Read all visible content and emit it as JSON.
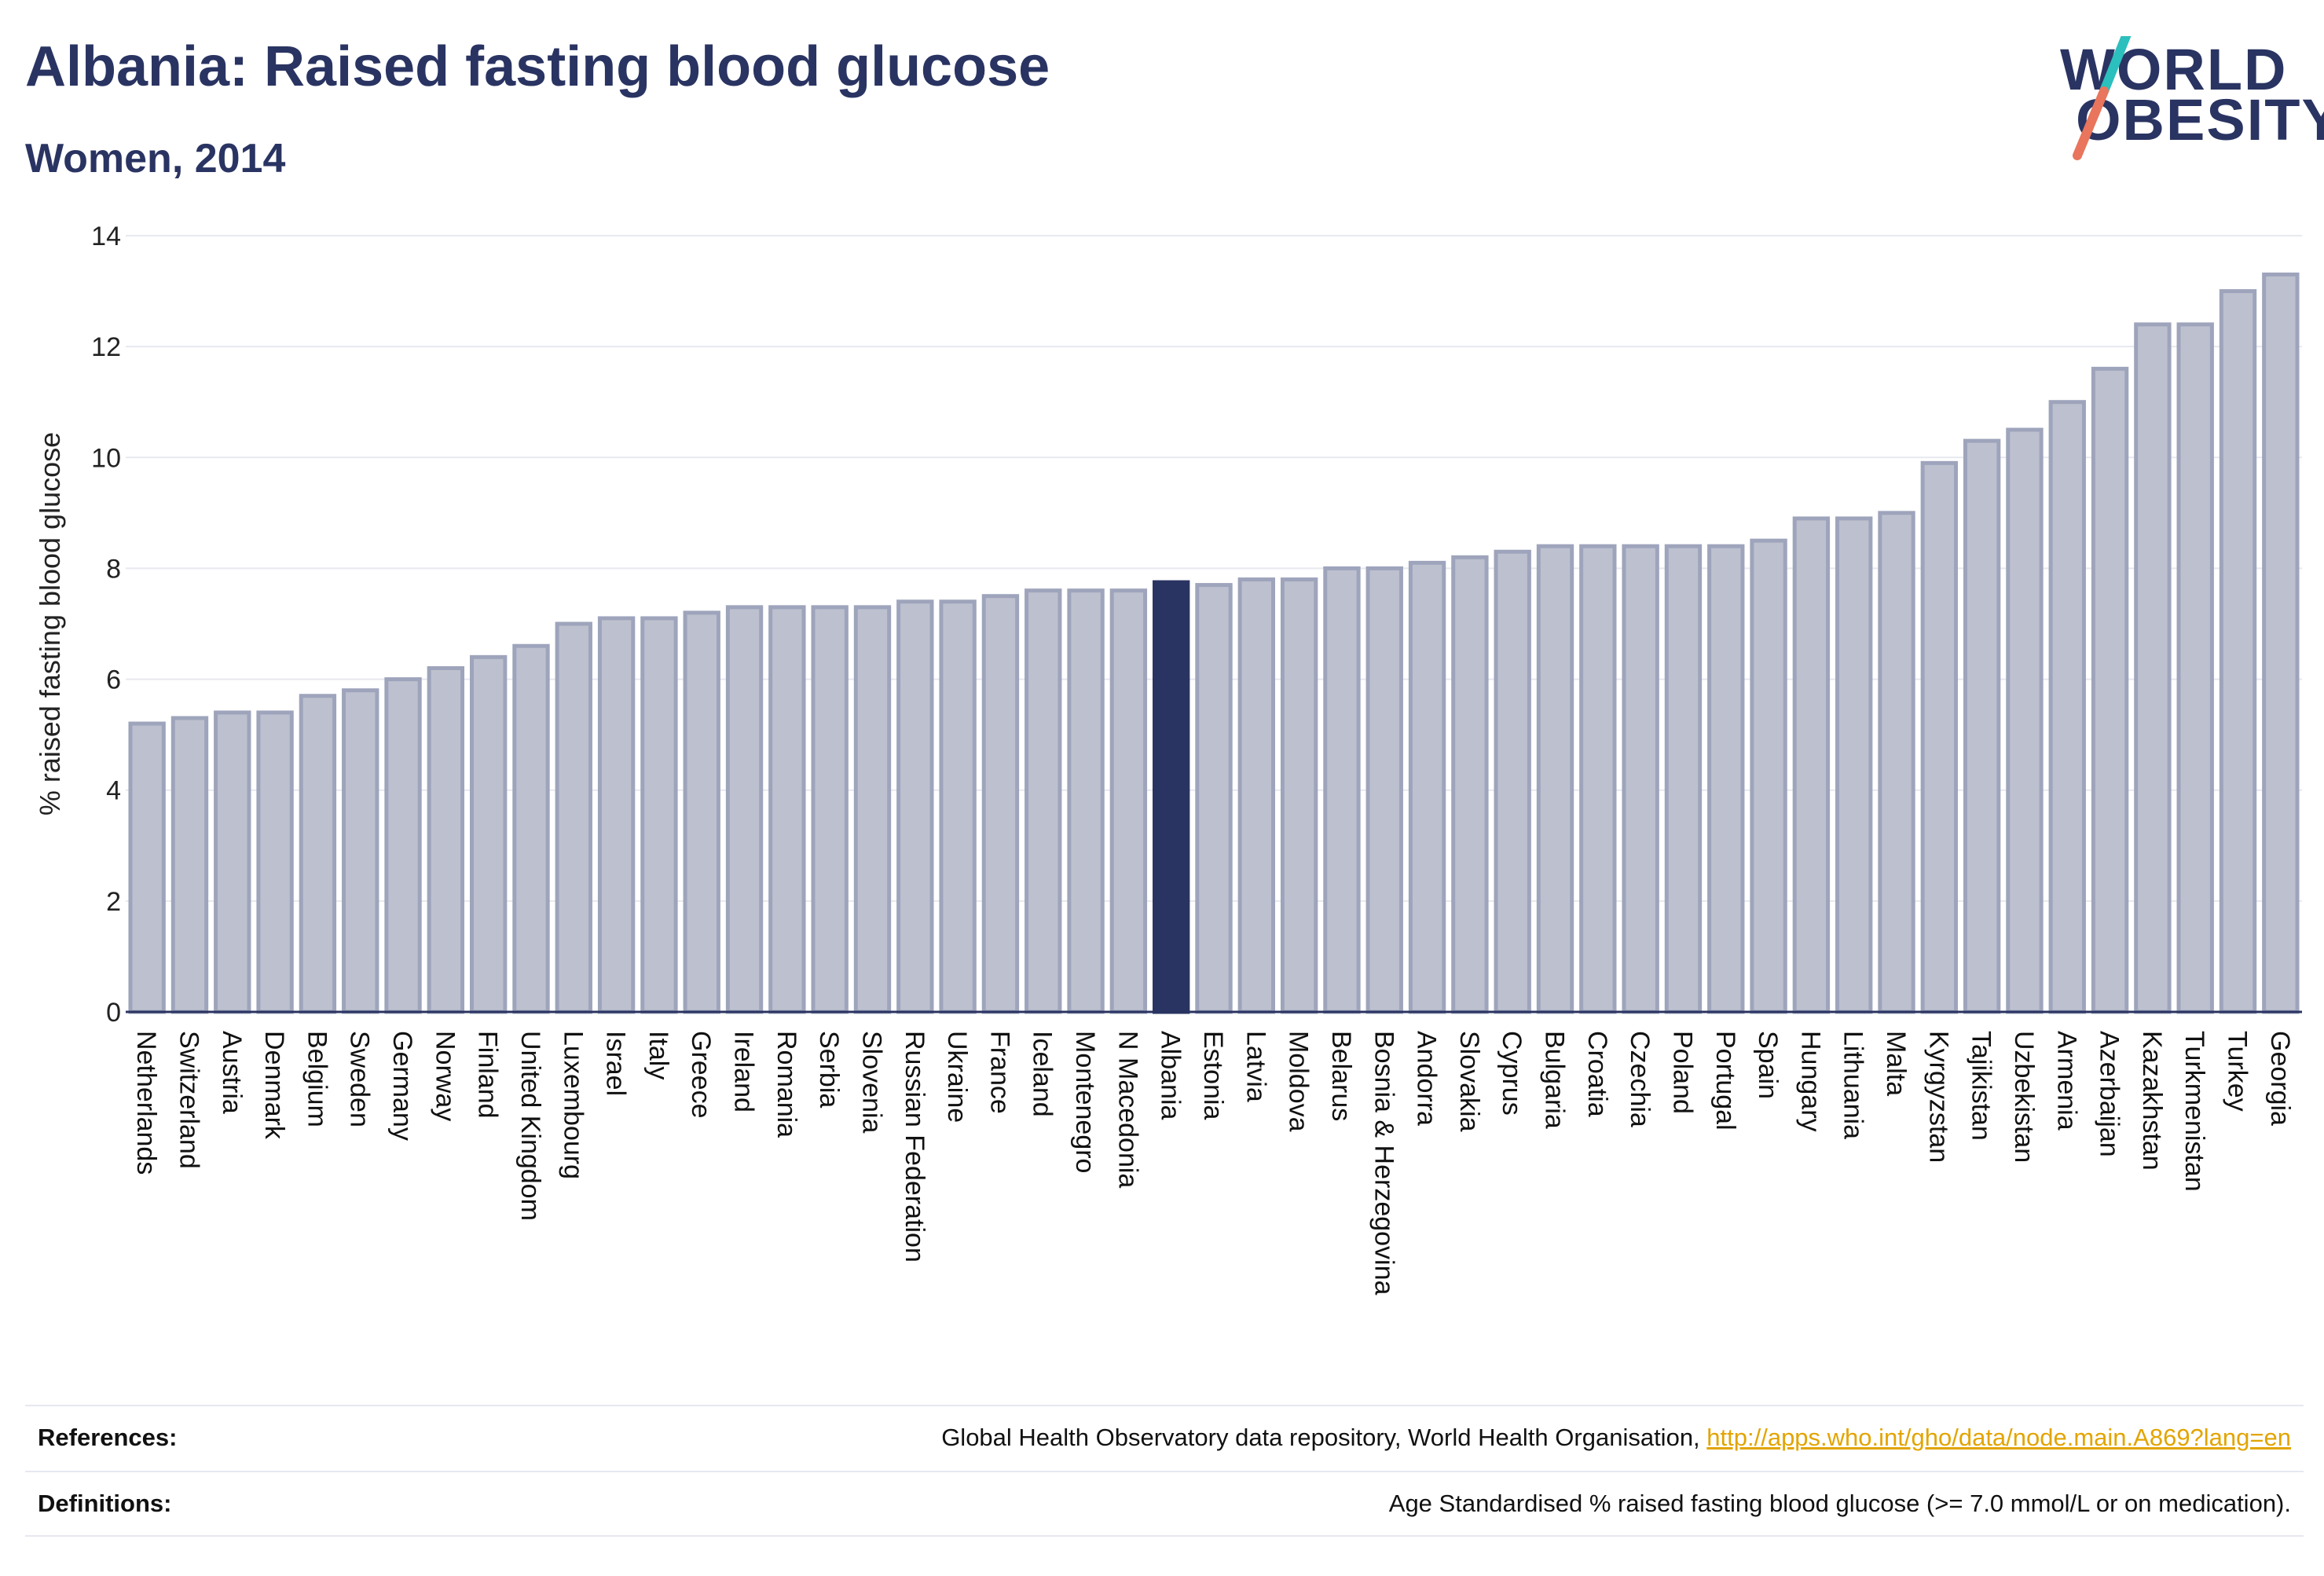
{
  "header": {
    "title": "Albania: Raised fasting blood glucose",
    "subtitle": "Women, 2014"
  },
  "logo": {
    "line1": "WORLD",
    "line2": "OBESITY"
  },
  "references": {
    "label": "References:",
    "text": "Global Health Observatory data repository, World Health Organisation, ",
    "link": "http://apps.who.int/gho/data/node.main.A869?lang=en"
  },
  "definitions": {
    "label": "Definitions:",
    "text": "Age Standardised % raised fasting blood glucose (>= 7.0 mmol/L or on medication)."
  },
  "colors": {
    "bar": "#bdc1cf",
    "bar_border": "#9ea4bb",
    "highlight": "#2a3462",
    "accent_teal": "#2bbfbd",
    "accent_coral": "#e8755c"
  },
  "chart_data": {
    "type": "bar",
    "ylabel": "% raised fasting blood glucose",
    "xlabel": "",
    "ylim": [
      0,
      14
    ],
    "yticks": [
      0,
      2,
      4,
      6,
      8,
      10,
      12,
      14
    ],
    "grid": true,
    "highlight": "Albania",
    "categories": [
      "Netherlands",
      "Switzerland",
      "Austria",
      "Denmark",
      "Belgium",
      "Sweden",
      "Germany",
      "Norway",
      "Finland",
      "United Kingdom",
      "Luxembourg",
      "Israel",
      "Italy",
      "Greece",
      "Ireland",
      "Romania",
      "Serbia",
      "Slovenia",
      "Russian Federation",
      "Ukraine",
      "France",
      "Iceland",
      "Montenegro",
      "N Macedonia",
      "Albania",
      "Estonia",
      "Latvia",
      "Moldova",
      "Belarus",
      "Bosnia & Herzegovina",
      "Andorra",
      "Slovakia",
      "Cyprus",
      "Bulgaria",
      "Croatia",
      "Czechia",
      "Poland",
      "Portugal",
      "Spain",
      "Hungary",
      "Lithuania",
      "Malta",
      "Kyrgyzstan",
      "Tajikistan",
      "Uzbekistan",
      "Armenia",
      "Azerbaijan",
      "Kazakhstan",
      "Turkmenistan",
      "Turkey",
      "Georgia"
    ],
    "values": [
      5.2,
      5.3,
      5.4,
      5.4,
      5.7,
      5.8,
      6.0,
      6.2,
      6.4,
      6.6,
      7.0,
      7.1,
      7.1,
      7.2,
      7.3,
      7.3,
      7.3,
      7.3,
      7.4,
      7.4,
      7.5,
      7.6,
      7.6,
      7.6,
      7.75,
      7.7,
      7.8,
      7.8,
      8.0,
      8.0,
      8.1,
      8.2,
      8.3,
      8.4,
      8.4,
      8.4,
      8.4,
      8.4,
      8.5,
      8.9,
      8.9,
      9.0,
      9.9,
      10.3,
      10.5,
      11.0,
      11.6,
      12.4,
      12.4,
      13.0,
      13.3
    ]
  }
}
